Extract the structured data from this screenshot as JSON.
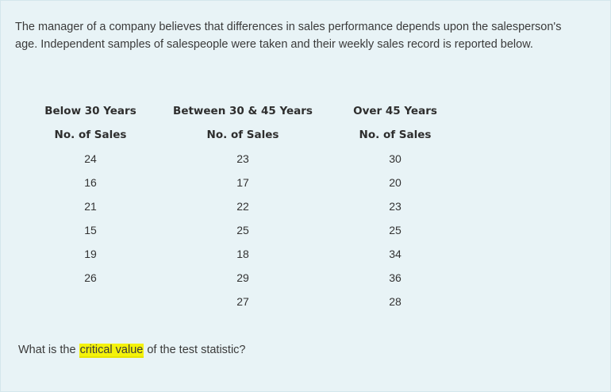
{
  "intro": "The manager of a company believes that differences in sales performance depends upon the salesperson's age. Independent samples of salespeople were taken and their weekly sales record is reported below.",
  "table": {
    "groups": [
      "Below 30 Years",
      "Between 30 & 45 Years",
      "Over 45 Years"
    ],
    "subheaders": [
      "No. of Sales",
      "No. of Sales",
      "No. of Sales"
    ],
    "rows": [
      [
        "24",
        "23",
        "30"
      ],
      [
        "16",
        "17",
        "20"
      ],
      [
        "21",
        "22",
        "23"
      ],
      [
        "15",
        "25",
        "25"
      ],
      [
        "19",
        "18",
        "34"
      ],
      [
        "26",
        "29",
        "36"
      ],
      [
        "",
        "27",
        "28"
      ]
    ]
  },
  "question": {
    "prefix": "What is the ",
    "highlight": "critical value",
    "suffix": " of the test statistic?",
    "highlight_color": "#f4f20a"
  }
}
